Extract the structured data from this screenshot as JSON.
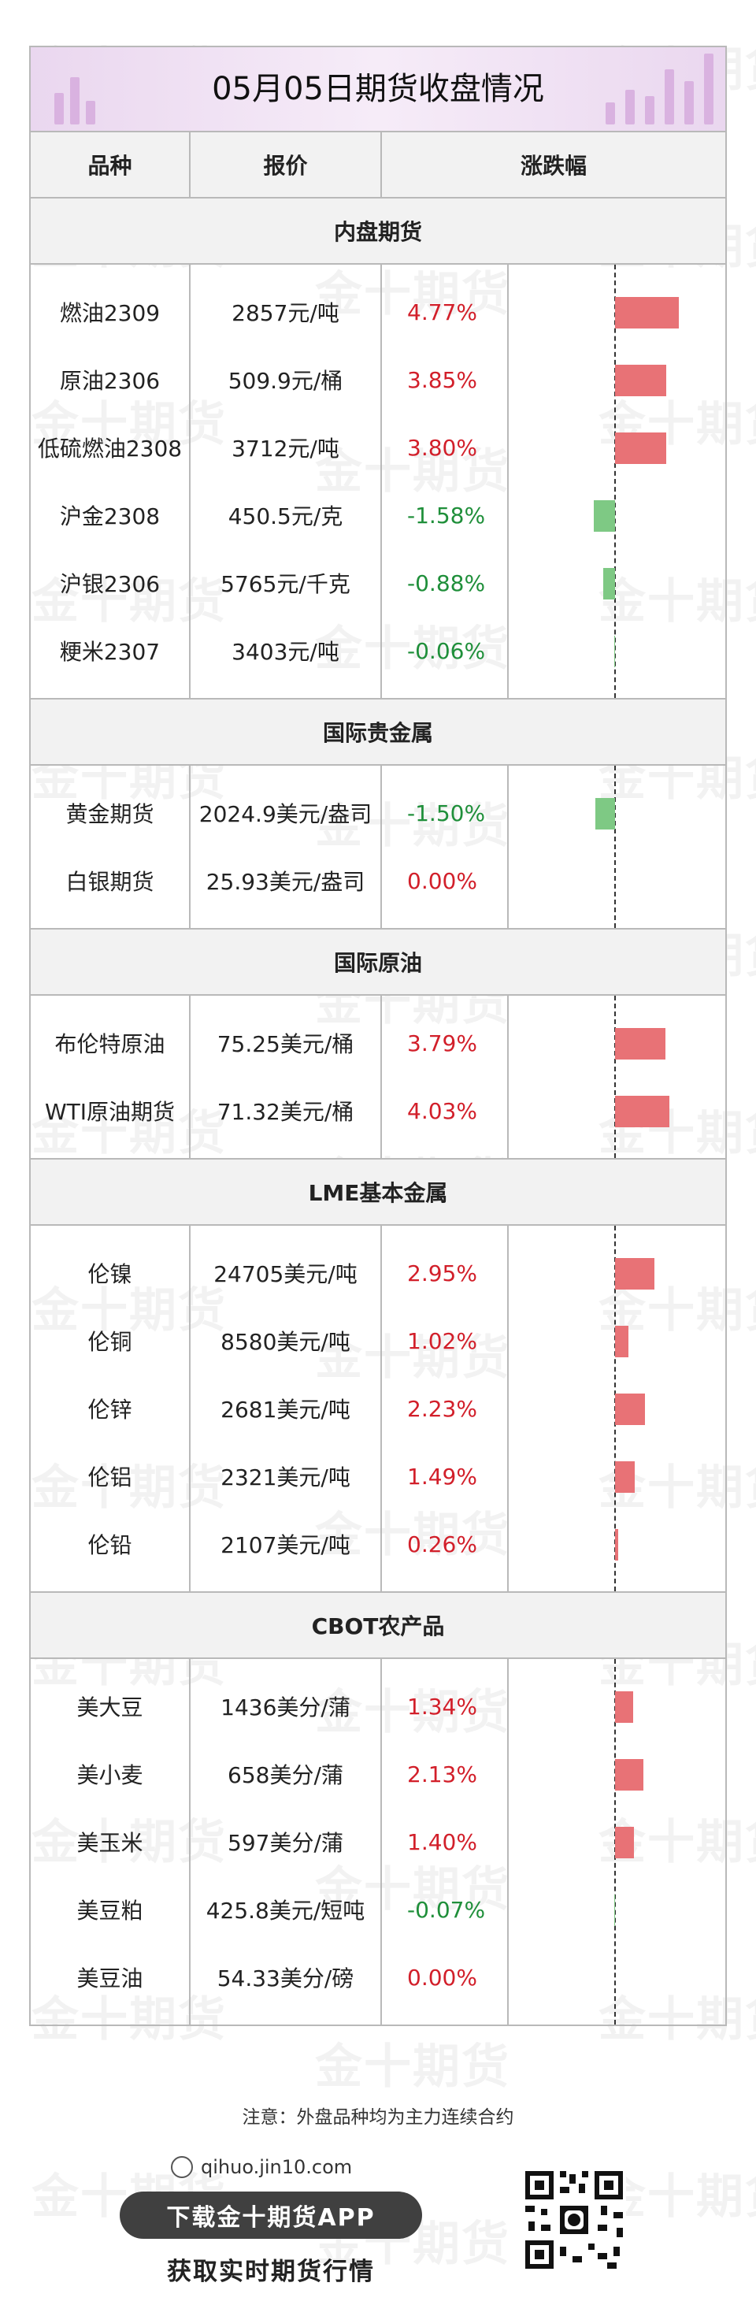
{
  "title": "05月05日期货收盘情况",
  "watermark": "金十期货",
  "header": {
    "col1": "品种",
    "col2": "报价",
    "col3": "涨跌幅"
  },
  "sections": [
    {
      "name": "内盘期货",
      "rows": [
        {
          "name": "燃油2309",
          "price": "2857元/吨",
          "change": "4.77%",
          "value": 4.77
        },
        {
          "name": "原油2306",
          "price": "509.9元/桶",
          "change": "3.85%",
          "value": 3.85
        },
        {
          "name": "低硫燃油2308",
          "price": "3712元/吨",
          "change": "3.80%",
          "value": 3.8
        },
        {
          "name": "沪金2308",
          "price": "450.5元/克",
          "change": "-1.58%",
          "value": -1.58
        },
        {
          "name": "沪银2306",
          "price": "5765元/千克",
          "change": "-0.88%",
          "value": -0.88
        },
        {
          "name": "粳米2307",
          "price": "3403元/吨",
          "change": "-0.06%",
          "value": -0.06
        }
      ]
    },
    {
      "name": "国际贵金属",
      "rows": [
        {
          "name": "黄金期货",
          "price": "2024.9美元/盎司",
          "change": "-1.50%",
          "value": -1.5
        },
        {
          "name": "白银期货",
          "price": "25.93美元/盎司",
          "change": "0.00%",
          "value": 0.0
        }
      ]
    },
    {
      "name": "国际原油",
      "rows": [
        {
          "name": "布伦特原油",
          "price": "75.25美元/桶",
          "change": "3.79%",
          "value": 3.79
        },
        {
          "name": "WTI原油期货",
          "price": "71.32美元/桶",
          "change": "4.03%",
          "value": 4.03
        }
      ]
    },
    {
      "name": "LME基本金属",
      "rows": [
        {
          "name": "伦镍",
          "price": "24705美元/吨",
          "change": "2.95%",
          "value": 2.95
        },
        {
          "name": "伦铜",
          "price": "8580美元/吨",
          "change": "1.02%",
          "value": 1.02
        },
        {
          "name": "伦锌",
          "price": "2681美元/吨",
          "change": "2.23%",
          "value": 2.23
        },
        {
          "name": "伦铝",
          "price": "2321美元/吨",
          "change": "1.49%",
          "value": 1.49
        },
        {
          "name": "伦铅",
          "price": "2107美元/吨",
          "change": "0.26%",
          "value": 0.26
        }
      ]
    },
    {
      "name": "CBOT农产品",
      "rows": [
        {
          "name": "美大豆",
          "price": "1436美分/蒲",
          "change": "1.34%",
          "value": 1.34
        },
        {
          "name": "美小麦",
          "price": "658美分/蒲",
          "change": "2.13%",
          "value": 2.13
        },
        {
          "name": "美玉米",
          "price": "597美分/蒲",
          "change": "1.40%",
          "value": 1.4
        },
        {
          "name": "美豆粕",
          "price": "425.8美元/短吨",
          "change": "-0.07%",
          "value": -0.07
        },
        {
          "name": "美豆油",
          "price": "54.33美分/磅",
          "change": "0.00%",
          "value": 0.0
        }
      ]
    }
  ],
  "colors": {
    "up": "#d21f2a",
    "down": "#1f8f3a",
    "bar_up": "#e87276",
    "bar_down": "#7ec984",
    "title_bg": "#ead7ef"
  },
  "footer": {
    "note": "注意：外盘品种均为主力连续合约",
    "site": "qihuo.jin10.com",
    "button": "下载金十期货APP",
    "subtitle": "获取实时期货行情"
  }
}
